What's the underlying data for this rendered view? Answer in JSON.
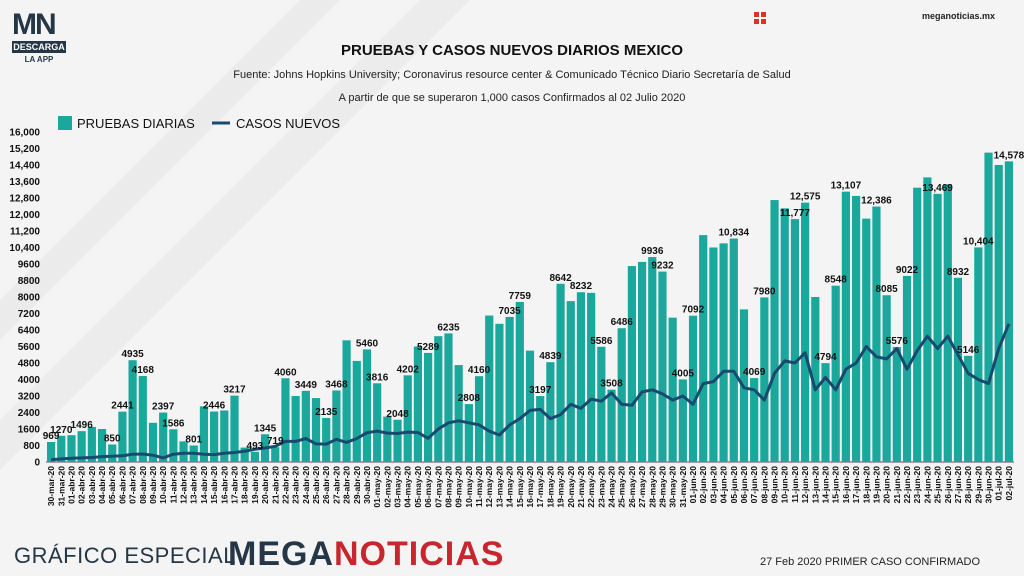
{
  "header": {
    "logo_text": "MN",
    "logo_descarga": "DESCARGA",
    "logo_app": "LA APP",
    "site": "meganoticias.mx"
  },
  "chart_data": {
    "type": "bar",
    "title": "PRUEBAS Y CASOS NUEVOS DIARIOS MEXICO",
    "subtitle": "Fuente: Johns Hopkins University; Coronavirus resource center & Comunicado Técnico Diario Secretaría de Salud",
    "subtitle2": "A partir de que se superaron 1,000 casos Confirmados al 02 Julio 2020",
    "legend": [
      "PRUEBAS DIARIAS",
      "CASOS NUEVOS"
    ],
    "legend_position": "top-left",
    "ylim": [
      0,
      16000
    ],
    "yticks": [
      "0",
      "800",
      "1600",
      "2400",
      "3200",
      "4000",
      "4800",
      "5600",
      "6400",
      "7200",
      "8000",
      "8800",
      "9600",
      "10,400",
      "11,200",
      "12,000",
      "12,800",
      "13,600",
      "14,400",
      "15,200",
      "16,000"
    ],
    "colors": {
      "bars": "#1aa79c",
      "line": "#174a6e"
    },
    "categories": [
      "30-mar-20",
      "31-mar-20",
      "01-abr-20",
      "02-abr-20",
      "03-abr-20",
      "04-abr-20",
      "05-abr-20",
      "06-abr-20",
      "07-abr-20",
      "08-abr-20",
      "09-abr-20",
      "10-abr-20",
      "11-abr-20",
      "12-abr-20",
      "13-abr-20",
      "14-abr-20",
      "15-abr-20",
      "16-abr-20",
      "17-abr-20",
      "18-abr-20",
      "19-abr-20",
      "20-abr-20",
      "21-abr-20",
      "22-abr-20",
      "23-abr-20",
      "24-abr-20",
      "25-abr-20",
      "26-abr-20",
      "27-abr-20",
      "28-abr-20",
      "29-abr-20",
      "30-abr-20",
      "01-may-20",
      "02-may-20",
      "03-may-20",
      "04-may-20",
      "05-may-20",
      "06-may-20",
      "07-may-20",
      "08-may-20",
      "09-may-20",
      "10-may-20",
      "11-may-20",
      "12-may-20",
      "13-may-20",
      "14-may-20",
      "15-may-20",
      "16-may-20",
      "17-may-20",
      "18-may-20",
      "19-may-20",
      "20-may-20",
      "21-may-20",
      "22-may-20",
      "23-may-20",
      "24-may-20",
      "25-may-20",
      "26-may-20",
      "27-may-20",
      "28-may-20",
      "29-may-20",
      "30-may-20",
      "31-may-20",
      "01-jun-20",
      "02-jun-20",
      "03-jun-20",
      "04-jun-20",
      "05-jun-20",
      "06-jun-20",
      "07-jun-20",
      "08-jun-20",
      "09-jun-20",
      "10-jun-20",
      "11-jun-20",
      "12-jun-20",
      "13-jun-20",
      "14-jun-20",
      "15-jun-20",
      "16-jun-20",
      "17-jun-20",
      "18-jun-20",
      "19-jun-20",
      "20-jun-20",
      "21-jun-20",
      "22-jun-20",
      "23-jun-20",
      "24-jun-20",
      "25-jun-20",
      "26-jun-20",
      "27-jun-20",
      "28-jun-20",
      "29-jun-20",
      "30-jun-20",
      "01-jul-20",
      "02-jul-20"
    ],
    "series": [
      {
        "name": "PRUEBAS DIARIAS",
        "values": [
          969,
          1270,
          1300,
          1496,
          1700,
          1600,
          850,
          2441,
          4935,
          4168,
          1900,
          2397,
          1586,
          1000,
          801,
          2700,
          2446,
          2500,
          3217,
          700,
          493,
          1345,
          719,
          4060,
          3200,
          3449,
          3100,
          2135,
          3468,
          5900,
          4900,
          5460,
          3816,
          2200,
          2048,
          4202,
          5600,
          5289,
          6100,
          6235,
          4700,
          2808,
          4160,
          7100,
          6700,
          7035,
          7759,
          5400,
          3197,
          4839,
          8642,
          7800,
          8232,
          8200,
          5586,
          3508,
          6486,
          9500,
          9700,
          9936,
          9232,
          7000,
          4005,
          7092,
          11000,
          10400,
          10600,
          10834,
          7400,
          4069,
          7980,
          12700,
          12300,
          11777,
          12575,
          8000,
          4794,
          8548,
          13107,
          12900,
          11800,
          12386,
          8085,
          5576,
          9022,
          13300,
          13800,
          13000,
          13469,
          8932,
          5146,
          10404,
          15000,
          14400,
          14578
        ],
        "labels": {
          "0": "969",
          "1": "1270",
          "3": "1496",
          "6": "850",
          "7": "2441",
          "8": "4935",
          "9": "4168",
          "11": "2397",
          "12": "1586",
          "14": "801",
          "16": "2446",
          "18": "3217",
          "20": "493",
          "21": "1345",
          "22": "719",
          "23": "4060",
          "25": "3449",
          "27": "2135",
          "28": "3468",
          "31": "5460",
          "32": "3816",
          "34": "2048",
          "35": "4202",
          "37": "5289",
          "39": "6235",
          "41": "2808",
          "42": "4160",
          "45": "7035",
          "46": "7759",
          "48": "3197",
          "49": "4839",
          "50": "8642",
          "52": "8232",
          "54": "5586",
          "55": "3508",
          "56": "6486",
          "59": "9936",
          "60": "9232",
          "62": "4005",
          "63": "7092",
          "67": "10,834",
          "69": "4069",
          "70": "7980",
          "73": "11,777",
          "74": "12,575",
          "76": "4794",
          "77": "8548",
          "78": "13,107",
          "81": "12,386",
          "82": "8085",
          "83": "5576",
          "84": "9022",
          "87": "13,469",
          "89": "8932",
          "90": "5146",
          "91": "10,404",
          "94": "14,578"
        }
      },
      {
        "name": "CASOS NUEVOS",
        "values": [
          110,
          150,
          180,
          200,
          220,
          260,
          280,
          300,
          380,
          390,
          330,
          200,
          380,
          420,
          420,
          380,
          360,
          420,
          460,
          520,
          620,
          680,
          760,
          1000,
          1000,
          1140,
          880,
          870,
          1100,
          950,
          1140,
          1420,
          1500,
          1400,
          1380,
          1450,
          1430,
          1150,
          1600,
          1900,
          2000,
          1900,
          1800,
          1500,
          1310,
          1800,
          2100,
          2500,
          2550,
          2100,
          2300,
          2800,
          2600,
          3050,
          2950,
          3350,
          2800,
          2750,
          3400,
          3500,
          3300,
          3000,
          3200,
          2800,
          3800,
          3900,
          4400,
          4400,
          3600,
          3500,
          3000,
          4300,
          4900,
          4800,
          5300,
          3500,
          4100,
          3500,
          4500,
          4800,
          5600,
          5100,
          5000,
          5500,
          4500,
          5400,
          6100,
          5500,
          6100,
          5200,
          4300,
          4000,
          3800,
          5500,
          6700
        ]
      }
    ]
  },
  "footer": {
    "left": "GRÁFICO ESPECIAL",
    "brand_a": "MEGA",
    "brand_b": "NOTICIAS",
    "right": "27 Feb 2020 PRIMER CASO CONFIRMADO"
  }
}
